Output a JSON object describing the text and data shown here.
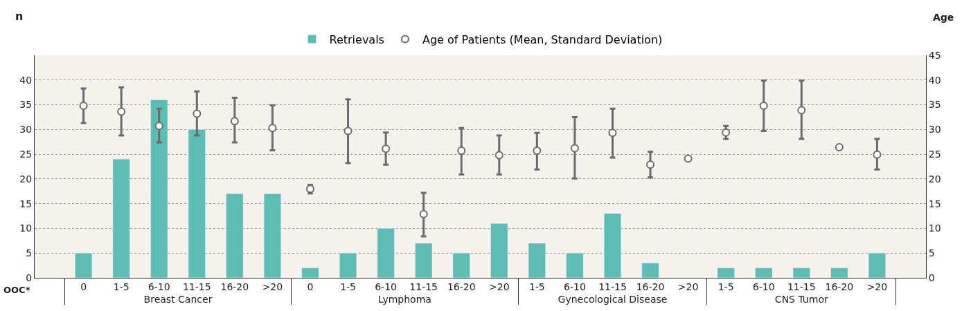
{
  "chart_data": {
    "type": "bar",
    "categories": [
      "0",
      "1-5",
      "6-10",
      "11-15",
      "16-20",
      ">20",
      "0",
      "1-5",
      "6-10",
      "11-15",
      "16-20",
      ">20",
      "1-5",
      "6-10",
      "11-15",
      "16-20",
      ">20",
      "1-5",
      "6-10",
      "11-15",
      "16-20",
      ">20"
    ],
    "series": [
      {
        "name": "Retrievals",
        "color": "#5dbdb4",
        "values": [
          5,
          24,
          36,
          30,
          17,
          17,
          2,
          5,
          10,
          7,
          5,
          11,
          7,
          5,
          13,
          3,
          null,
          2,
          2,
          2,
          2,
          5
        ]
      },
      {
        "name": "Age of Patients (Mean, Standard Deviation)",
        "type": "scatter",
        "axis": "y2",
        "color": "#6b6b6b",
        "marker": "circle",
        "values": [
          34.8,
          33.6,
          30.7,
          33.2,
          31.7,
          30.3,
          18,
          29.7,
          26.1,
          12.9,
          25.7,
          24.8,
          25.7,
          26.2,
          29.3,
          22.9,
          24.1,
          29.4,
          34.8,
          33.9,
          26.4,
          24.9
        ],
        "errors": [
          [
            31.3,
            38.3
          ],
          [
            28.8,
            38.5
          ],
          [
            27.4,
            34.2
          ],
          [
            28.8,
            37.7
          ],
          [
            27.4,
            36.4
          ],
          [
            25.8,
            34.9
          ],
          [
            17.1,
            18.8
          ],
          [
            23.2,
            36.1
          ],
          [
            22.9,
            29.4
          ],
          [
            8.4,
            17.2
          ],
          [
            20.9,
            30.3
          ],
          [
            20.9,
            28.8
          ],
          [
            21.9,
            29.3
          ],
          [
            20.1,
            32.5
          ],
          [
            24.3,
            34.2
          ],
          [
            20.3,
            25.5
          ],
          null,
          [
            28.1,
            30.7
          ],
          [
            29.7,
            39.9
          ],
          [
            28.1,
            39.9
          ],
          null,
          [
            21.9,
            28.1
          ]
        ]
      }
    ],
    "ylabel": "n",
    "y2label": "Age",
    "ylim": [
      0,
      45
    ],
    "yticks": [
      0,
      5,
      10,
      15,
      20,
      25,
      30,
      35,
      40
    ],
    "y2lim": [
      0,
      45
    ],
    "y2ticks": [
      0,
      5,
      10,
      15,
      20,
      25,
      30,
      35,
      40,
      45
    ],
    "annotations": [
      "OOC*",
      "Breast Cancer",
      "Lymphoma",
      "Gynecological Disease",
      "CNS Tumor"
    ],
    "grid": "y",
    "legend": "top"
  }
}
